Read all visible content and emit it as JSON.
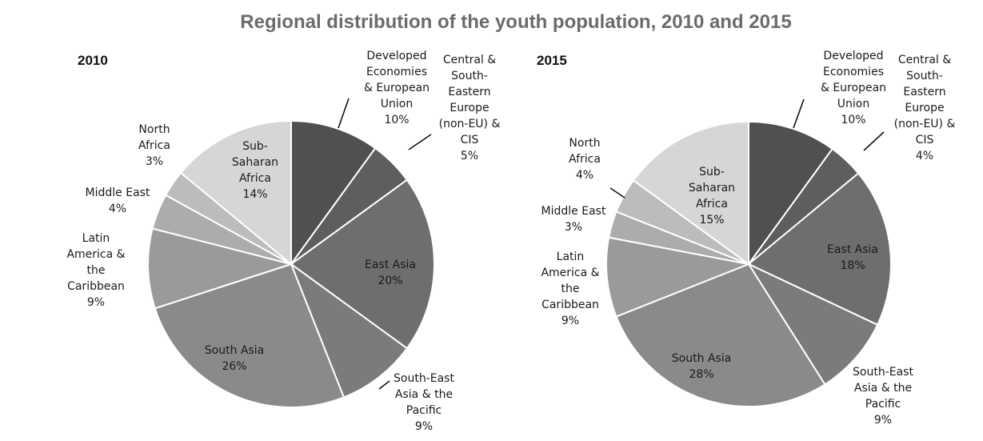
{
  "colors": {
    "title": "#6b6b6b",
    "text": "#1a1a1a",
    "slice_edge": "#ffffff",
    "slices": [
      "#505050",
      "#5e5e5e",
      "#6e6e6e",
      "#7b7b7b",
      "#8a8a8a",
      "#9a9a9a",
      "#acacac",
      "#bcbcbc",
      "#d6d6d6"
    ]
  },
  "chart_data": {
    "type": "pie",
    "title": "Regional distribution of the youth population, 2010 and 2015",
    "pies": [
      {
        "title": "2010",
        "categories": [
          "Developed Economies & European Union",
          "Central & South-Eastern Europe (non-EU) & CIS",
          "East Asia",
          "South-East Asia & the Pacific",
          "South Asia",
          "Latin America & the Caribbean",
          "Middle East",
          "North Africa",
          "Sub-Saharan Africa"
        ],
        "values": [
          10,
          5,
          20,
          9,
          26,
          9,
          4,
          3,
          14
        ],
        "labels": [
          [
            "Developed",
            "Economies",
            "& European",
            "Union",
            "10%"
          ],
          [
            "Central &",
            "South-",
            "Eastern",
            "Europe",
            "(non-EU) &",
            "CIS",
            "5%"
          ],
          [
            "East Asia",
            "20%"
          ],
          [
            "South-East",
            "Asia & the",
            "Pacific",
            "9%"
          ],
          [
            "South Asia",
            "26%"
          ],
          [
            "Latin",
            "America &",
            "the",
            "Caribbean",
            "9%"
          ],
          [
            "Middle East",
            "4%"
          ],
          [
            "North",
            "Africa",
            "3%"
          ],
          [
            "Sub-",
            "Saharan",
            "Africa",
            "14%"
          ]
        ]
      },
      {
        "title": "2015",
        "categories": [
          "Developed Economies & European Union",
          "Central & South-Eastern Europe (non-EU) & CIS",
          "East Asia",
          "South-East Asia & the Pacific",
          "South Asia",
          "Latin America & the Caribbean",
          "Middle East",
          "North Africa",
          "Sub-Saharan Africa"
        ],
        "values": [
          10,
          4,
          18,
          9,
          28,
          9,
          3,
          4,
          15
        ],
        "labels": [
          [
            "Developed",
            "Economies",
            "& European",
            "Union",
            "10%"
          ],
          [
            "Central &",
            "South-",
            "Eastern",
            "Europe",
            "(non-EU) &",
            "CIS",
            "4%"
          ],
          [
            "East Asia",
            "18%"
          ],
          [
            "South-East",
            "Asia & the",
            "Pacific",
            "9%"
          ],
          [
            "South Asia",
            "28%"
          ],
          [
            "Latin",
            "America &",
            "the",
            "Caribbean",
            "9%"
          ],
          [
            "Middle East",
            "3%"
          ],
          [
            "North",
            "Africa",
            "4%"
          ],
          [
            "Sub-",
            "Saharan",
            "Africa",
            "15%"
          ]
        ]
      }
    ]
  }
}
